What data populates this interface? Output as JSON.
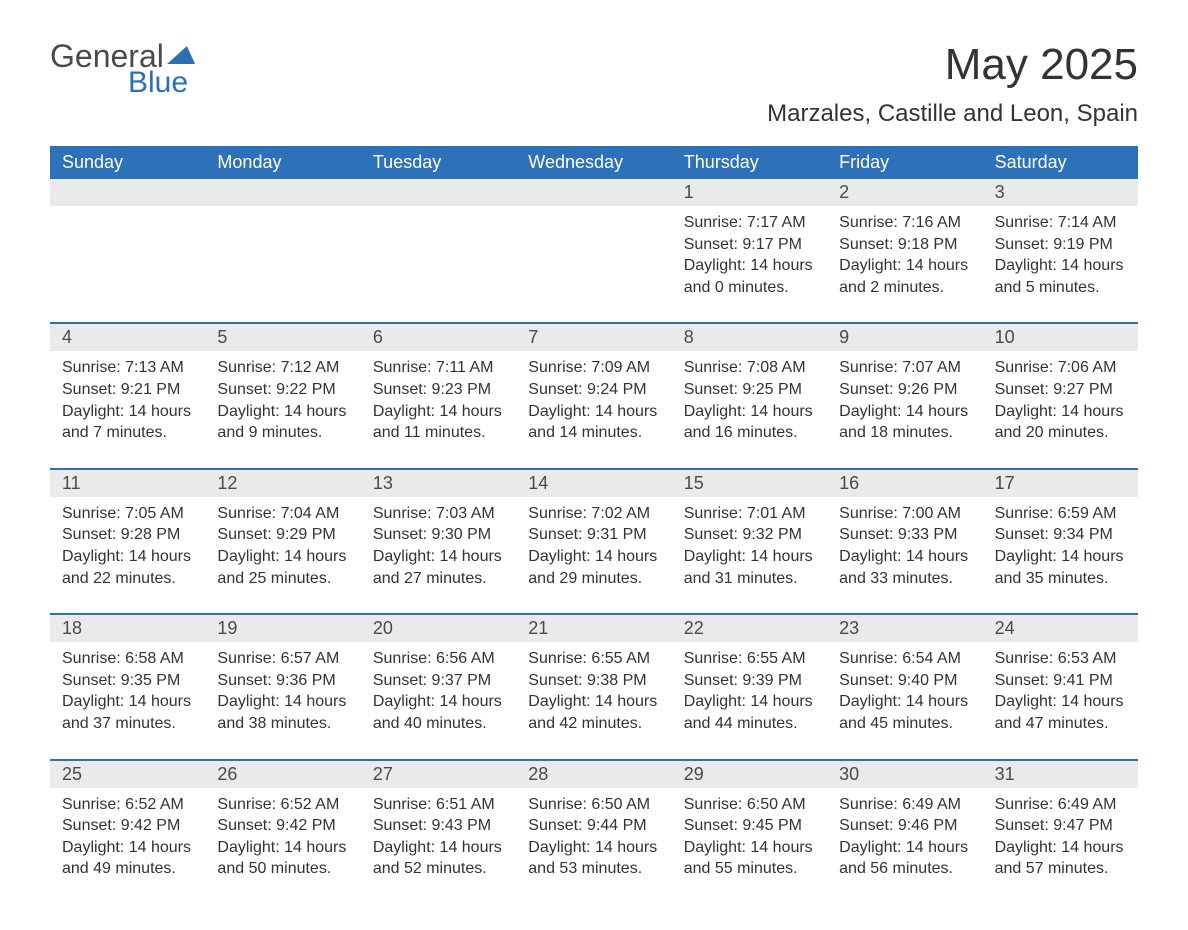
{
  "logo": {
    "word1": "General",
    "word2": "Blue"
  },
  "title": "May 2025",
  "location": "Marzales, Castille and Leon, Spain",
  "colors": {
    "header_blue": "#2d71b8",
    "row_gray": "#eaeaea",
    "text": "#333333",
    "logo_blue": "#2d6fb5"
  },
  "day_names": [
    "Sunday",
    "Monday",
    "Tuesday",
    "Wednesday",
    "Thursday",
    "Friday",
    "Saturday"
  ],
  "weeks": [
    [
      {
        "n": "",
        "sunrise": "",
        "sunset": "",
        "daylight": ""
      },
      {
        "n": "",
        "sunrise": "",
        "sunset": "",
        "daylight": ""
      },
      {
        "n": "",
        "sunrise": "",
        "sunset": "",
        "daylight": ""
      },
      {
        "n": "",
        "sunrise": "",
        "sunset": "",
        "daylight": ""
      },
      {
        "n": "1",
        "sunrise": "Sunrise: 7:17 AM",
        "sunset": "Sunset: 9:17 PM",
        "daylight": "Daylight: 14 hours and 0 minutes."
      },
      {
        "n": "2",
        "sunrise": "Sunrise: 7:16 AM",
        "sunset": "Sunset: 9:18 PM",
        "daylight": "Daylight: 14 hours and 2 minutes."
      },
      {
        "n": "3",
        "sunrise": "Sunrise: 7:14 AM",
        "sunset": "Sunset: 9:19 PM",
        "daylight": "Daylight: 14 hours and 5 minutes."
      }
    ],
    [
      {
        "n": "4",
        "sunrise": "Sunrise: 7:13 AM",
        "sunset": "Sunset: 9:21 PM",
        "daylight": "Daylight: 14 hours and 7 minutes."
      },
      {
        "n": "5",
        "sunrise": "Sunrise: 7:12 AM",
        "sunset": "Sunset: 9:22 PM",
        "daylight": "Daylight: 14 hours and 9 minutes."
      },
      {
        "n": "6",
        "sunrise": "Sunrise: 7:11 AM",
        "sunset": "Sunset: 9:23 PM",
        "daylight": "Daylight: 14 hours and 11 minutes."
      },
      {
        "n": "7",
        "sunrise": "Sunrise: 7:09 AM",
        "sunset": "Sunset: 9:24 PM",
        "daylight": "Daylight: 14 hours and 14 minutes."
      },
      {
        "n": "8",
        "sunrise": "Sunrise: 7:08 AM",
        "sunset": "Sunset: 9:25 PM",
        "daylight": "Daylight: 14 hours and 16 minutes."
      },
      {
        "n": "9",
        "sunrise": "Sunrise: 7:07 AM",
        "sunset": "Sunset: 9:26 PM",
        "daylight": "Daylight: 14 hours and 18 minutes."
      },
      {
        "n": "10",
        "sunrise": "Sunrise: 7:06 AM",
        "sunset": "Sunset: 9:27 PM",
        "daylight": "Daylight: 14 hours and 20 minutes."
      }
    ],
    [
      {
        "n": "11",
        "sunrise": "Sunrise: 7:05 AM",
        "sunset": "Sunset: 9:28 PM",
        "daylight": "Daylight: 14 hours and 22 minutes."
      },
      {
        "n": "12",
        "sunrise": "Sunrise: 7:04 AM",
        "sunset": "Sunset: 9:29 PM",
        "daylight": "Daylight: 14 hours and 25 minutes."
      },
      {
        "n": "13",
        "sunrise": "Sunrise: 7:03 AM",
        "sunset": "Sunset: 9:30 PM",
        "daylight": "Daylight: 14 hours and 27 minutes."
      },
      {
        "n": "14",
        "sunrise": "Sunrise: 7:02 AM",
        "sunset": "Sunset: 9:31 PM",
        "daylight": "Daylight: 14 hours and 29 minutes."
      },
      {
        "n": "15",
        "sunrise": "Sunrise: 7:01 AM",
        "sunset": "Sunset: 9:32 PM",
        "daylight": "Daylight: 14 hours and 31 minutes."
      },
      {
        "n": "16",
        "sunrise": "Sunrise: 7:00 AM",
        "sunset": "Sunset: 9:33 PM",
        "daylight": "Daylight: 14 hours and 33 minutes."
      },
      {
        "n": "17",
        "sunrise": "Sunrise: 6:59 AM",
        "sunset": "Sunset: 9:34 PM",
        "daylight": "Daylight: 14 hours and 35 minutes."
      }
    ],
    [
      {
        "n": "18",
        "sunrise": "Sunrise: 6:58 AM",
        "sunset": "Sunset: 9:35 PM",
        "daylight": "Daylight: 14 hours and 37 minutes."
      },
      {
        "n": "19",
        "sunrise": "Sunrise: 6:57 AM",
        "sunset": "Sunset: 9:36 PM",
        "daylight": "Daylight: 14 hours and 38 minutes."
      },
      {
        "n": "20",
        "sunrise": "Sunrise: 6:56 AM",
        "sunset": "Sunset: 9:37 PM",
        "daylight": "Daylight: 14 hours and 40 minutes."
      },
      {
        "n": "21",
        "sunrise": "Sunrise: 6:55 AM",
        "sunset": "Sunset: 9:38 PM",
        "daylight": "Daylight: 14 hours and 42 minutes."
      },
      {
        "n": "22",
        "sunrise": "Sunrise: 6:55 AM",
        "sunset": "Sunset: 9:39 PM",
        "daylight": "Daylight: 14 hours and 44 minutes."
      },
      {
        "n": "23",
        "sunrise": "Sunrise: 6:54 AM",
        "sunset": "Sunset: 9:40 PM",
        "daylight": "Daylight: 14 hours and 45 minutes."
      },
      {
        "n": "24",
        "sunrise": "Sunrise: 6:53 AM",
        "sunset": "Sunset: 9:41 PM",
        "daylight": "Daylight: 14 hours and 47 minutes."
      }
    ],
    [
      {
        "n": "25",
        "sunrise": "Sunrise: 6:52 AM",
        "sunset": "Sunset: 9:42 PM",
        "daylight": "Daylight: 14 hours and 49 minutes."
      },
      {
        "n": "26",
        "sunrise": "Sunrise: 6:52 AM",
        "sunset": "Sunset: 9:42 PM",
        "daylight": "Daylight: 14 hours and 50 minutes."
      },
      {
        "n": "27",
        "sunrise": "Sunrise: 6:51 AM",
        "sunset": "Sunset: 9:43 PM",
        "daylight": "Daylight: 14 hours and 52 minutes."
      },
      {
        "n": "28",
        "sunrise": "Sunrise: 6:50 AM",
        "sunset": "Sunset: 9:44 PM",
        "daylight": "Daylight: 14 hours and 53 minutes."
      },
      {
        "n": "29",
        "sunrise": "Sunrise: 6:50 AM",
        "sunset": "Sunset: 9:45 PM",
        "daylight": "Daylight: 14 hours and 55 minutes."
      },
      {
        "n": "30",
        "sunrise": "Sunrise: 6:49 AM",
        "sunset": "Sunset: 9:46 PM",
        "daylight": "Daylight: 14 hours and 56 minutes."
      },
      {
        "n": "31",
        "sunrise": "Sunrise: 6:49 AM",
        "sunset": "Sunset: 9:47 PM",
        "daylight": "Daylight: 14 hours and 57 minutes."
      }
    ]
  ]
}
